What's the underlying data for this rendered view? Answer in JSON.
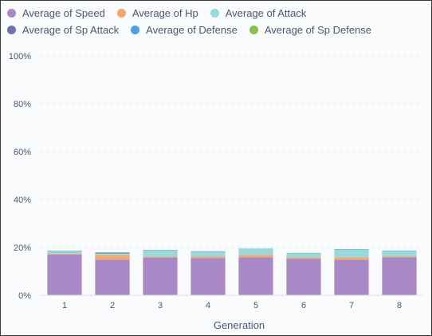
{
  "colors": {
    "speed": "#a989c5",
    "hp": "#f2a86f",
    "attack": "#98d9d9",
    "sp_attack": "#7172ad",
    "defense": "#509ee3",
    "sp_defense": "#88bf4d",
    "grid": "#e4e9ee",
    "axis": "#dfe3e8",
    "text": "#4c5773"
  },
  "chart_data": {
    "type": "bar",
    "stacked": true,
    "xlabel": "Generation",
    "ylabel": "",
    "categories": [
      "1",
      "2",
      "3",
      "4",
      "5",
      "6",
      "7",
      "8"
    ],
    "ylim": [
      0,
      100
    ],
    "yticks": [
      "0%",
      "20%",
      "40%",
      "60%",
      "80%",
      "100%"
    ],
    "grid": true,
    "legend_position": "top",
    "series": [
      {
        "name": "Average of Speed",
        "color_key": "speed",
        "values": [
          17.0,
          14.8,
          15.8,
          15.6,
          15.9,
          15.2,
          14.8,
          15.9
        ]
      },
      {
        "name": "Average of Hp",
        "color_key": "hp",
        "values": [
          0.3,
          2.0,
          0.4,
          0.6,
          1.0,
          0.6,
          1.0,
          0.4
        ]
      },
      {
        "name": "Average of Attack",
        "color_key": "attack",
        "values": [
          1.1,
          0.7,
          2.6,
          2.0,
          2.4,
          1.7,
          3.3,
          2.2
        ]
      },
      {
        "name": "Average of Sp Attack",
        "color_key": "sp_attack",
        "values": [
          0.1,
          0.2,
          0.1,
          0.1,
          0.1,
          0.1,
          0.1,
          0.1
        ]
      },
      {
        "name": "Average of Defense",
        "color_key": "defense",
        "values": [
          0.1,
          0.2,
          0.1,
          0.1,
          0.1,
          0.1,
          0.1,
          0.1
        ]
      },
      {
        "name": "Average of Sp Defense",
        "color_key": "sp_defense",
        "values": [
          0.0,
          0.1,
          0.0,
          0.0,
          0.0,
          0.0,
          0.0,
          0.0
        ]
      }
    ]
  }
}
